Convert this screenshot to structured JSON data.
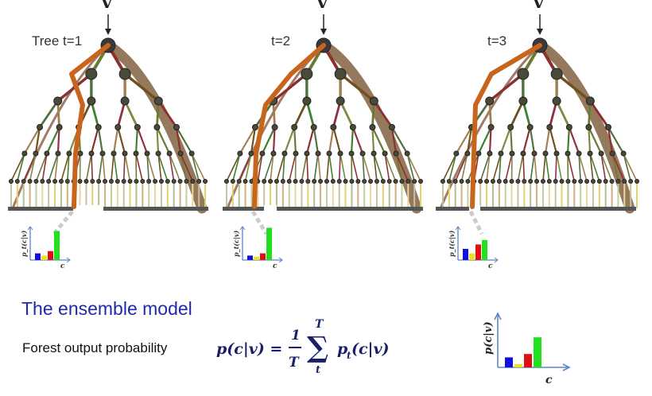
{
  "trees": [
    {
      "label": "Tree t=1",
      "input": "v",
      "hist_values": [
        0.12,
        0.08,
        0.16,
        0.52
      ]
    },
    {
      "label": "t=2",
      "input": "v",
      "hist_values": [
        0.08,
        0.06,
        0.12,
        0.58
      ]
    },
    {
      "label": "t=3",
      "input": "v",
      "hist_values": [
        0.2,
        0.12,
        0.28,
        0.36
      ]
    }
  ],
  "small_hist_axis": {
    "ylabel": "p_t(c|v)",
    "xlabel": "c"
  },
  "ensemble": {
    "heading": "The ensemble model",
    "forest_label": "Forest output probability",
    "formula": {
      "lhs": "p(c|v) =",
      "frac_num": "1",
      "frac_den": "T",
      "sum_top": "T",
      "sum_sym": "∑",
      "sum_bottom": "t",
      "rhs": "p",
      "rhs_sub": "t",
      "rhs_arg": "(c|v)"
    },
    "hist_ylabel": "p(c|v)",
    "hist_xlabel": "c",
    "hist_values": [
      0.3,
      0.1,
      0.4,
      0.9
    ]
  },
  "colors": {
    "path": "#c8641c",
    "path_edge": "#8a6a4a",
    "node": "#3a3a3a",
    "bar_blue": "#1010e0",
    "bar_yellow": "#f0e020",
    "bar_red": "#e01010",
    "bar_green": "#20e020",
    "axis": "#5a86c8",
    "heading": "#1f2aa8"
  }
}
